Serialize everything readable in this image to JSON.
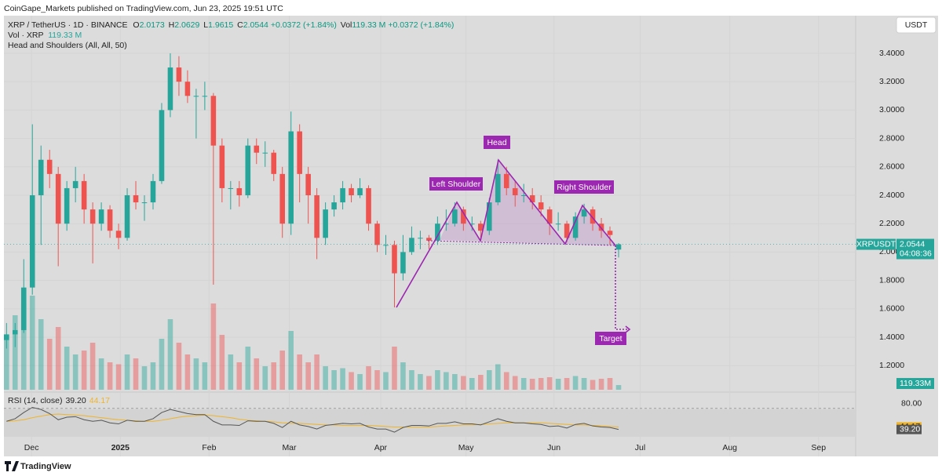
{
  "header": {
    "published": "CoinGape_Markets published on TradingView.com, Jun 23, 2025 19:51 UTC",
    "symbol": "XRP / TetherUS · 1D · BINANCE",
    "o_label": "O",
    "open": "2.0173",
    "h_label": "H",
    "high": "2.0629",
    "l_label": "L",
    "low": "1.9615",
    "c_label": "C",
    "close": "2.0544",
    "change": "+0.0372 (+1.84%)",
    "vol_label": "Vol",
    "vol": "119.33 M",
    "vol_change": "+0.0372 (+1.84%)",
    "vol_line_label": "Vol · XRP",
    "vol_line_value": "119.33 M",
    "indicator": "Head and Shoulders (All, All, 50)",
    "currency_button": "USDT"
  },
  "chart_data": {
    "type": "candlestick",
    "up_color": "#26a69a",
    "down_color": "#ef5350",
    "xlim": [
      -0.3,
      98.5
    ],
    "xticks": [
      {
        "value": 2.9,
        "label": "Dec"
      },
      {
        "value": 13.2,
        "label": "2025"
      },
      {
        "value": 23.5,
        "label": "Feb"
      },
      {
        "value": 32.8,
        "label": "Mar"
      },
      {
        "value": 43.4,
        "label": "Apr"
      },
      {
        "value": 53.3,
        "label": "May"
      },
      {
        "value": 63.5,
        "label": "Jun"
      },
      {
        "value": 73.5,
        "label": "Jul"
      },
      {
        "value": 83.9,
        "label": "Aug"
      },
      {
        "value": 94.2,
        "label": "Sep"
      }
    ],
    "ylim": [
      1.03,
      3.665
    ],
    "yticks": [
      {
        "value": 1.2,
        "label": "1.2000"
      },
      {
        "value": 1.4,
        "label": "1.4000"
      },
      {
        "value": 1.6,
        "label": "1.6000"
      },
      {
        "value": 1.8,
        "label": "1.8000"
      },
      {
        "value": 2.0,
        "label": "2.0000"
      },
      {
        "value": 2.2,
        "label": "2.2000"
      },
      {
        "value": 2.4,
        "label": "2.4000"
      },
      {
        "value": 2.6,
        "label": "2.6000"
      },
      {
        "value": 2.8,
        "label": "2.8000"
      },
      {
        "value": 3.0,
        "label": "3.0000"
      },
      {
        "value": 3.2,
        "label": "3.2000"
      },
      {
        "value": 3.4,
        "label": "3.4000"
      }
    ],
    "ohlc": [
      [
        1.38,
        1.5,
        1.32,
        1.42
      ],
      [
        1.42,
        1.5,
        1.33,
        1.45
      ],
      [
        1.45,
        1.95,
        1.43,
        1.75
      ],
      [
        1.75,
        2.9,
        1.7,
        2.4
      ],
      [
        2.4,
        2.75,
        2.05,
        2.65
      ],
      [
        2.65,
        2.72,
        2.45,
        2.55
      ],
      [
        2.55,
        2.6,
        1.9,
        2.2
      ],
      [
        2.2,
        2.5,
        2.15,
        2.45
      ],
      [
        2.45,
        2.6,
        2.35,
        2.5
      ],
      [
        2.5,
        2.55,
        2.2,
        2.3
      ],
      [
        2.3,
        2.35,
        1.92,
        2.2
      ],
      [
        2.2,
        2.35,
        2.15,
        2.3
      ],
      [
        2.3,
        2.33,
        2.1,
        2.15
      ],
      [
        2.15,
        2.2,
        2.02,
        2.1
      ],
      [
        2.1,
        2.45,
        2.08,
        2.4
      ],
      [
        2.4,
        2.5,
        2.3,
        2.35
      ],
      [
        2.35,
        2.4,
        2.22,
        2.35
      ],
      [
        2.35,
        2.55,
        2.3,
        2.5
      ],
      [
        2.5,
        3.05,
        2.48,
        3.0
      ],
      [
        3.0,
        3.4,
        2.95,
        3.3
      ],
      [
        3.3,
        3.38,
        3.1,
        3.2
      ],
      [
        3.2,
        3.28,
        3.05,
        3.1
      ],
      [
        3.1,
        3.15,
        2.8,
        3.1
      ],
      [
        3.1,
        3.2,
        3.0,
        3.1
      ],
      [
        3.1,
        3.12,
        1.77,
        2.75
      ],
      [
        2.75,
        2.8,
        2.35,
        2.45
      ],
      [
        2.45,
        2.5,
        2.3,
        2.45
      ],
      [
        2.45,
        2.5,
        2.32,
        2.4
      ],
      [
        2.4,
        2.8,
        2.38,
        2.75
      ],
      [
        2.75,
        2.8,
        2.62,
        2.7
      ],
      [
        2.7,
        2.78,
        2.6,
        2.7
      ],
      [
        2.7,
        2.72,
        2.5,
        2.55
      ],
      [
        2.55,
        2.6,
        2.1,
        2.2
      ],
      [
        2.2,
        2.99,
        2.12,
        2.85
      ],
      [
        2.85,
        2.9,
        2.35,
        2.55
      ],
      [
        2.55,
        2.6,
        2.2,
        2.4
      ],
      [
        2.4,
        2.45,
        1.95,
        2.1
      ],
      [
        2.1,
        2.35,
        2.05,
        2.3
      ],
      [
        2.3,
        2.4,
        2.25,
        2.35
      ],
      [
        2.35,
        2.5,
        2.3,
        2.45
      ],
      [
        2.45,
        2.48,
        2.35,
        2.4
      ],
      [
        2.4,
        2.52,
        2.38,
        2.45
      ],
      [
        2.45,
        2.47,
        2.15,
        2.2
      ],
      [
        2.2,
        2.22,
        2.0,
        2.05
      ],
      [
        2.05,
        2.12,
        1.98,
        2.05
      ],
      [
        2.05,
        2.08,
        1.61,
        1.85
      ],
      [
        1.85,
        2.12,
        1.8,
        2.0
      ],
      [
        2.0,
        2.18,
        1.98,
        2.1
      ],
      [
        2.1,
        2.15,
        2.02,
        2.1
      ],
      [
        2.1,
        2.12,
        2.02,
        2.08
      ],
      [
        2.08,
        2.25,
        2.05,
        2.2
      ],
      [
        2.2,
        2.3,
        2.15,
        2.2
      ],
      [
        2.2,
        2.35,
        2.18,
        2.3
      ],
      [
        2.3,
        2.32,
        2.15,
        2.2
      ],
      [
        2.2,
        2.25,
        2.15,
        2.2
      ],
      [
        2.2,
        2.22,
        2.08,
        2.15
      ],
      [
        2.15,
        2.38,
        2.12,
        2.35
      ],
      [
        2.35,
        2.65,
        2.33,
        2.55
      ],
      [
        2.55,
        2.6,
        2.4,
        2.45
      ],
      [
        2.45,
        2.5,
        2.32,
        2.4
      ],
      [
        2.4,
        2.48,
        2.35,
        2.4
      ],
      [
        2.4,
        2.45,
        2.3,
        2.35
      ],
      [
        2.35,
        2.4,
        2.25,
        2.3
      ],
      [
        2.3,
        2.32,
        2.12,
        2.2
      ],
      [
        2.2,
        2.28,
        2.15,
        2.2
      ],
      [
        2.2,
        2.22,
        2.07,
        2.1
      ],
      [
        2.1,
        2.28,
        2.08,
        2.25
      ],
      [
        2.25,
        2.34,
        2.2,
        2.3
      ],
      [
        2.3,
        2.32,
        2.15,
        2.2
      ],
      [
        2.2,
        2.24,
        2.1,
        2.15
      ],
      [
        2.15,
        2.18,
        2.05,
        2.12
      ],
      [
        2.0173,
        2.0629,
        1.9615,
        2.0544
      ]
    ],
    "volume": {
      "ylim": [
        0,
        9540
      ],
      "values": [
        1400,
        1900,
        2200,
        2400,
        1800,
        1300,
        1600,
        1100,
        900,
        1000,
        1200,
        800,
        700,
        650,
        900,
        800,
        600,
        700,
        1300,
        1800,
        1200,
        900,
        800,
        700,
        2200,
        1400,
        900,
        700,
        1100,
        800,
        600,
        700,
        1000,
        1500,
        900,
        700,
        900,
        600,
        500,
        550,
        450,
        400,
        600,
        500,
        450,
        1100,
        700,
        500,
        400,
        350,
        500,
        450,
        400,
        350,
        300,
        380,
        500,
        650,
        450,
        350,
        300,
        280,
        300,
        320,
        280,
        300,
        350,
        300,
        250,
        280,
        300,
        119.33
      ],
      "last_label": "119.33M"
    },
    "last_price": {
      "name": "XRPUSDT",
      "value": 2.0544,
      "label": "2.0544",
      "countdown": "04:08:36"
    },
    "annotations": [
      "Left Shoulder",
      "Head",
      "Right Shoulder",
      "Target"
    ],
    "rsi": {
      "title": "RSI (14, close)",
      "ylim": [
        25,
        104
      ],
      "yticks": [
        {
          "value": 80,
          "label": "80.00"
        }
      ],
      "color": "#555555",
      "ma_color": "#f0b429",
      "values": [
        55,
        60,
        72,
        82,
        78,
        70,
        58,
        63,
        64,
        58,
        55,
        57,
        52,
        50,
        57,
        55,
        55,
        60,
        72,
        78,
        74,
        70,
        68,
        68,
        55,
        48,
        48,
        47,
        56,
        55,
        55,
        51,
        43,
        55,
        48,
        45,
        40,
        47,
        49,
        51,
        50,
        51,
        44,
        40,
        40,
        34,
        43,
        47,
        47,
        46,
        51,
        51,
        54,
        50,
        50,
        48,
        54,
        60,
        55,
        52,
        52,
        50,
        49,
        45,
        46,
        42,
        49,
        51,
        46,
        44,
        43,
        39.2
      ],
      "value_label": "39.20",
      "ma_values": [
        55,
        56,
        58,
        62,
        65,
        68,
        69,
        68,
        67,
        66,
        64,
        62,
        60,
        58,
        57,
        56,
        55,
        55,
        57,
        60,
        63,
        65,
        66,
        67,
        66,
        64,
        62,
        59,
        57,
        56,
        55,
        54,
        52,
        51,
        51,
        50,
        49,
        48,
        48,
        47,
        47,
        47,
        47,
        46,
        45,
        44,
        44,
        44,
        44,
        44,
        45,
        46,
        47,
        48,
        48,
        49,
        50,
        51,
        52,
        52,
        52,
        52,
        52,
        51,
        50,
        49,
        48,
        48,
        47,
        46,
        45,
        44.17
      ],
      "ma_label": "44.17"
    }
  },
  "footer": {
    "brand": "TradingView"
  }
}
